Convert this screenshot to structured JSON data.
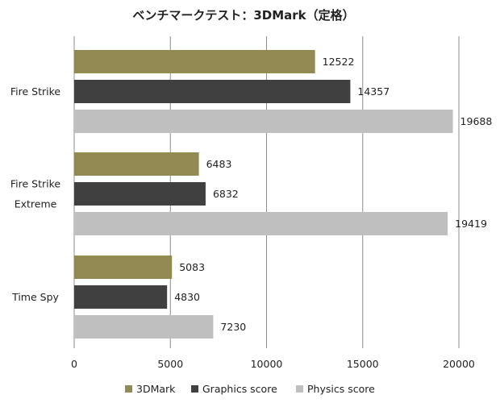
{
  "chart_data": {
    "type": "bar",
    "orientation": "horizontal",
    "title": "ベンチマークテスト：3DMark（定格）",
    "categories": [
      [
        "Fire Strike"
      ],
      [
        "Fire Strike",
        "Extreme"
      ],
      [
        "Time Spy"
      ]
    ],
    "series": [
      {
        "name": "3DMark",
        "color": "#938953",
        "values": [
          12522,
          6483,
          5083
        ]
      },
      {
        "name": "Graphics score",
        "color": "#404040",
        "values": [
          14357,
          6832,
          4830
        ]
      },
      {
        "name": "Physics score",
        "color": "#bfbfbf",
        "values": [
          19688,
          19419,
          7230
        ]
      }
    ],
    "xlim": [
      0,
      20000
    ],
    "xticks": [
      0,
      5000,
      10000,
      15000,
      20000
    ],
    "grid": true,
    "legend": "bottom"
  }
}
